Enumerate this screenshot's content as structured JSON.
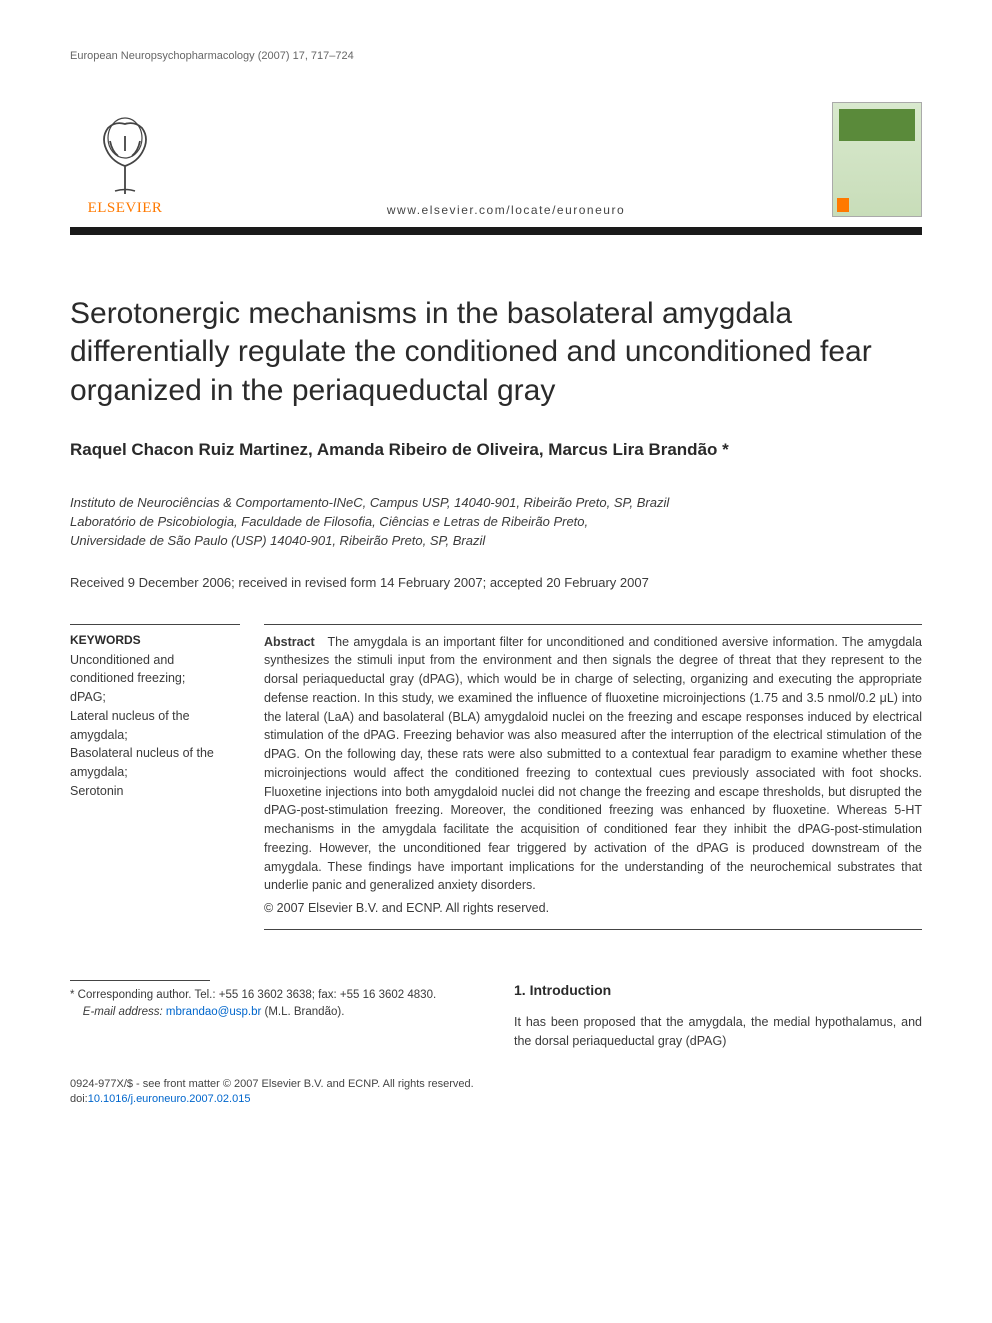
{
  "running_head": "European Neuropsychopharmacology (2007) 17, 717–724",
  "publisher": {
    "name": "ELSEVIER",
    "tree_color": "#444444",
    "name_color": "#ff7900"
  },
  "journal_url": "www.elsevier.com/locate/euroneuro",
  "journal_cover": {
    "bg_top": "#d9e9ce",
    "bg_bottom": "#c8ddb9",
    "band_color": "#5a8a3a",
    "logo_color": "#ff7900"
  },
  "title": "Serotonergic mechanisms in the basolateral amygdala differentially regulate the conditioned and unconditioned fear organized in the periaqueductal gray",
  "authors": "Raquel Chacon Ruiz Martinez, Amanda Ribeiro de Oliveira, Marcus Lira Brandão *",
  "affiliations": "Instituto de Neurociências & Comportamento-INeC, Campus USP, 14040-901, Ribeirão Preto, SP, Brazil\nLaboratório de Psicobiologia, Faculdade de Filosofia, Ciências e Letras de Ribeirão Preto,\nUniversidade de São Paulo (USP) 14040-901, Ribeirão Preto, SP, Brazil",
  "dates": "Received 9 December 2006; received in revised form 14 February 2007; accepted 20 February 2007",
  "keywords": {
    "heading": "KEYWORDS",
    "list": "Unconditioned and conditioned freezing;\ndPAG;\nLateral nucleus of the amygdala;\nBasolateral nucleus of the amygdala;\nSerotonin"
  },
  "abstract": {
    "label": "Abstract",
    "text": "The amygdala is an important filter for unconditioned and conditioned aversive information. The amygdala synthesizes the stimuli input from the environment and then signals the degree of threat that they represent to the dorsal periaqueductal gray (dPAG), which would be in charge of selecting, organizing and executing the appropriate defense reaction. In this study, we examined the influence of fluoxetine microinjections (1.75 and 3.5 nmol/0.2 μL) into the lateral (LaA) and basolateral (BLA) amygdaloid nuclei on the freezing and escape responses induced by electrical stimulation of the dPAG. Freezing behavior was also measured after the interruption of the electrical stimulation of the dPAG. On the following day, these rats were also submitted to a contextual fear paradigm to examine whether these microinjections would affect the conditioned freezing to contextual cues previously associated with foot shocks. Fluoxetine injections into both amygdaloid nuclei did not change the freezing and escape thresholds, but disrupted the dPAG-post-stimulation freezing. Moreover, the conditioned freezing was enhanced by fluoxetine. Whereas 5-HT mechanisms in the amygdala facilitate the acquisition of conditioned fear they inhibit the dPAG-post-stimulation freezing. However, the unconditioned fear triggered by activation of the dPAG is produced downstream of the amygdala. These findings have important implications for the understanding of the neurochemical substrates that underlie panic and generalized anxiety disorders.",
    "copyright": "© 2007 Elsevier B.V. and ECNP. All rights reserved."
  },
  "footnote": {
    "corresponding": "* Corresponding author. Tel.: +55 16 3602 3638; fax: +55 16 3602 4830.",
    "email_label": "E-mail address:",
    "email": "mbrandao@usp.br",
    "email_person": "(M.L. Brandão)."
  },
  "intro": {
    "heading": "1. Introduction",
    "text": "It has been proposed that the amygdala, the medial hypothalamus, and the dorsal periaqueductal gray (dPAG)"
  },
  "footer": {
    "issn_line": "0924-977X/$ - see front matter © 2007 Elsevier B.V. and ECNP. All rights reserved.",
    "doi_label": "doi:",
    "doi": "10.1016/j.euroneuro.2007.02.015"
  },
  "colors": {
    "text": "#3a3a3a",
    "heading": "#2a2a2a",
    "link": "#0066cc",
    "rule": "#1a1a1a"
  },
  "typography": {
    "title_fontsize": 30,
    "authors_fontsize": 17,
    "body_fontsize": 12.5,
    "keywords_fontsize": 12.5,
    "running_head_fontsize": 11
  }
}
